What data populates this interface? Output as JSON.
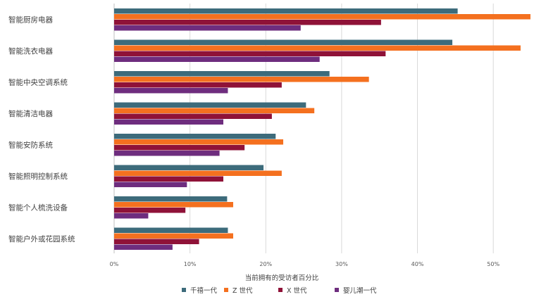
{
  "chart_data": {
    "type": "bar",
    "orientation": "horizontal",
    "categories": [
      "智能厨房电器",
      "智能洗衣电器",
      "智能中央空调系统",
      "智能清洁电器",
      "智能安防系统",
      "智能照明控制系统",
      "智能个人梳洗设备",
      "智能户外或花园系统"
    ],
    "series": [
      {
        "name": "千禧一代",
        "color": "#3d6b7b",
        "values": [
          45.3,
          44.6,
          28.4,
          25.3,
          21.3,
          19.7,
          14.9,
          15.0
        ]
      },
      {
        "name": "Z 世代",
        "color": "#f4701f",
        "values": [
          54.9,
          53.6,
          33.6,
          26.4,
          22.3,
          22.1,
          15.7,
          15.7
        ]
      },
      {
        "name": "X 世代",
        "color": "#8f1238",
        "values": [
          35.2,
          35.8,
          22.1,
          20.8,
          17.2,
          14.4,
          9.4,
          11.2
        ]
      },
      {
        "name": "婴儿潮一代",
        "color": "#6e2d7e",
        "values": [
          24.6,
          27.1,
          15.0,
          14.4,
          13.9,
          9.6,
          4.5,
          7.7
        ]
      }
    ],
    "xlim": [
      0,
      55
    ],
    "xticks": [
      0,
      10,
      20,
      30,
      40,
      50
    ],
    "xtick_labels": [
      "0%",
      "10%",
      "20%",
      "30%",
      "40%",
      "50%"
    ],
    "xlabel": "当前拥有的受访者百分比",
    "ylabel": "",
    "title": "",
    "grid": "vertical",
    "legend_position": "bottom"
  }
}
